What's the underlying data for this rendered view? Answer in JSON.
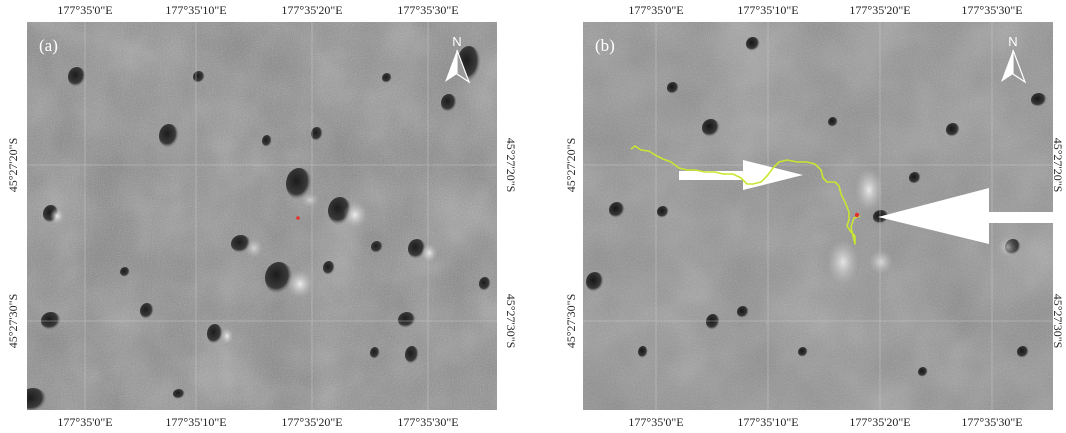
{
  "panel_a": {
    "label": "(a)",
    "north_label": "N",
    "top_lon_labels": [
      "177°35'0\"E",
      "177°35'10\"E",
      "177°35'20\"E",
      "177°35'30\"E"
    ],
    "bottom_lon_labels": [
      "177°35'0\"E",
      "177°35'10\"E",
      "177°35'20\"E",
      "177°35'30\"E"
    ],
    "left_lat_labels": [
      "45°27'20\"S",
      "45°27'30\"S"
    ],
    "right_lat_labels": [
      "45°27'20\"S",
      "45°27'30\"S"
    ]
  },
  "panel_b": {
    "label": "(b)",
    "north_label": "N",
    "top_lon_labels": [
      "177°35'0\"E",
      "177°35'10\"E",
      "177°35'20\"E",
      "177°35'30\"E"
    ],
    "bottom_lon_labels": [
      "177°35'0\"E",
      "177°35'10\"E",
      "177°35'20\"E",
      "177°35'30\"E"
    ],
    "left_lat_labels": [
      "45°27'20\"S",
      "45°27'30\"S"
    ],
    "right_lat_labels": [
      "45°27'20\"S",
      "45°27'30\"S"
    ]
  },
  "colors": {
    "lunar_surface": "#8a8a8a",
    "graticule": "#d0d0d0",
    "rover_track": "#c8e632",
    "landing_site": "#e53030",
    "arrow": "#ffffff"
  },
  "icons": [
    "north-arrow-icon"
  ]
}
